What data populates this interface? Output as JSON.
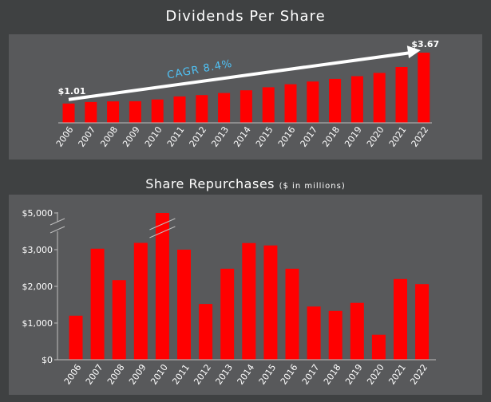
{
  "titles": {
    "dividends": "Dividends Per Share",
    "repurchases": "Share Repurchases",
    "repurchases_unit": "($ in millions)"
  },
  "colors": {
    "background": "#3f4142",
    "panel": "#58595b",
    "bar": "#ff0000",
    "axis": "#bfbfbf",
    "text": "#ffffff",
    "cagr": "#4fc3f7"
  },
  "chart_data": [
    {
      "type": "bar",
      "title": "Dividends Per Share",
      "categories": [
        "2006",
        "2007",
        "2008",
        "2009",
        "2010",
        "2011",
        "2012",
        "2013",
        "2014",
        "2015",
        "2016",
        "2017",
        "2018",
        "2019",
        "2020",
        "2021",
        "2022"
      ],
      "values": [
        1.01,
        1.09,
        1.12,
        1.13,
        1.22,
        1.38,
        1.45,
        1.56,
        1.7,
        1.86,
        2.02,
        2.16,
        2.3,
        2.44,
        2.61,
        2.92,
        3.67
      ],
      "ylim": [
        0,
        3.8
      ],
      "grid": false,
      "data_labels": [
        {
          "index": 0,
          "text": "$1.01"
        },
        {
          "index": 16,
          "text": "$3.67"
        }
      ],
      "annotation": {
        "text": "CAGR 8.4%",
        "arrow_from_index": 0,
        "arrow_to_index": 16
      }
    },
    {
      "type": "bar",
      "title": "Share Repurchases",
      "subtitle": "($ in millions)",
      "categories": [
        "2006",
        "2007",
        "2008",
        "2009",
        "2010",
        "2011",
        "2012",
        "2013",
        "2014",
        "2015",
        "2016",
        "2017",
        "2018",
        "2019",
        "2020",
        "2021",
        "2022"
      ],
      "values": [
        1200,
        3050,
        2170,
        3370,
        5000,
        3000,
        1520,
        2480,
        3360,
        3230,
        2480,
        1450,
        1330,
        1550,
        680,
        2200,
        2060
      ],
      "ylim": [
        0,
        5000
      ],
      "yticks": [
        "$0",
        "$1,000",
        "$2,000",
        "$3,000",
        "$5,000"
      ],
      "axis_break": true,
      "grid": false
    }
  ]
}
